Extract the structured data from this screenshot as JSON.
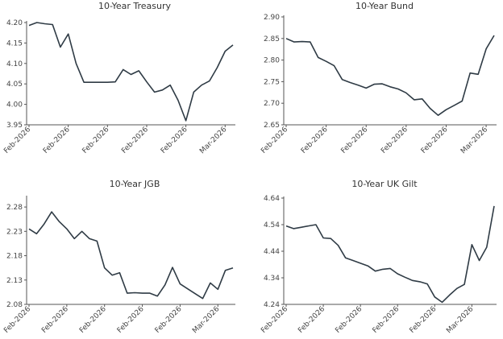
{
  "chart_data": [
    {
      "type": "line",
      "title": "10-Year Treasury",
      "xlabel": "",
      "ylabel": "",
      "ylim": [
        3.95,
        4.2
      ],
      "yticks": [
        "3.95",
        "4.00",
        "4.05",
        "4.10",
        "4.15",
        "4.20"
      ],
      "xticks": [
        "Feb-2026",
        "Feb-2026",
        "Feb-2026",
        "Feb-2026",
        "Feb-2026",
        "Mar-2026"
      ],
      "xtick_index": [
        0,
        5,
        10,
        15,
        20,
        25
      ],
      "series": [
        {
          "name": "10-Year Treasury",
          "values": [
            4.193,
            4.2,
            4.197,
            4.195,
            4.14,
            4.172,
            4.1,
            4.054,
            4.054,
            4.054,
            4.054,
            4.055,
            4.085,
            4.073,
            4.082,
            4.055,
            4.03,
            4.035,
            4.047,
            4.01,
            3.96,
            4.03,
            4.047,
            4.057,
            4.09,
            4.13,
            4.145
          ]
        }
      ]
    },
    {
      "type": "line",
      "title": "10-Year Bund",
      "xlabel": "",
      "ylabel": "",
      "ylim": [
        2.65,
        2.9
      ],
      "yticks": [
        "2.65",
        "2.70",
        "2.75",
        "2.80",
        "2.85",
        "2.90"
      ],
      "xticks": [
        "Feb-2026",
        "Feb-2026",
        "Feb-2026",
        "Feb-2026",
        "Feb-2026",
        "Mar-2026"
      ],
      "xtick_index": [
        0,
        5,
        10,
        15,
        20,
        25
      ],
      "series": [
        {
          "name": "10-Year Bund",
          "values": [
            2.85,
            2.842,
            2.843,
            2.842,
            2.806,
            2.797,
            2.787,
            2.755,
            2.748,
            2.742,
            2.735,
            2.744,
            2.745,
            2.738,
            2.733,
            2.724,
            2.708,
            2.71,
            2.688,
            2.672,
            2.685,
            2.695,
            2.705,
            2.77,
            2.767,
            2.826,
            2.857
          ]
        }
      ]
    },
    {
      "type": "line",
      "title": "10-Year JGB",
      "xlabel": "",
      "ylabel": "",
      "ylim": [
        2.08,
        2.3
      ],
      "yticks": [
        "2.08",
        "2.13",
        "2.18",
        "2.23",
        "2.28"
      ],
      "xticks": [
        "Feb-2026",
        "Feb-2026",
        "Feb-2026",
        "Feb-2026",
        "Feb-2026",
        "Mar-2026"
      ],
      "xtick_index": [
        0,
        5,
        10,
        15,
        20,
        25
      ],
      "series": [
        {
          "name": "10-Year JGB",
          "values": [
            2.235,
            2.225,
            2.245,
            2.27,
            2.25,
            2.235,
            2.215,
            2.23,
            2.215,
            2.21,
            2.155,
            2.14,
            2.145,
            2.103,
            2.104,
            2.103,
            2.103,
            2.097,
            2.12,
            2.156,
            2.122,
            2.112,
            2.102,
            2.092,
            2.124,
            2.111,
            2.15,
            2.155
          ]
        }
      ]
    },
    {
      "type": "line",
      "title": "10-Year UK Gilt",
      "xlabel": "",
      "ylabel": "",
      "ylim": [
        4.24,
        4.64
      ],
      "yticks": [
        "4.24",
        "4.34",
        "4.44",
        "4.54",
        "4.64"
      ],
      "xticks": [
        "Feb-2026",
        "Feb-2026",
        "Feb-2026",
        "Feb-2026",
        "Feb-2026",
        "Mar-2026"
      ],
      "xtick_index": [
        0,
        5,
        10,
        15,
        20,
        25
      ],
      "series": [
        {
          "name": "10-Year UK Gilt",
          "values": [
            4.535,
            4.525,
            4.53,
            4.535,
            4.54,
            4.49,
            4.488,
            4.462,
            4.415,
            4.405,
            4.395,
            4.385,
            4.365,
            4.372,
            4.375,
            4.355,
            4.342,
            4.33,
            4.325,
            4.317,
            4.268,
            4.248,
            4.275,
            4.3,
            4.315,
            4.465,
            4.405,
            4.455,
            4.61
          ]
        }
      ]
    }
  ]
}
